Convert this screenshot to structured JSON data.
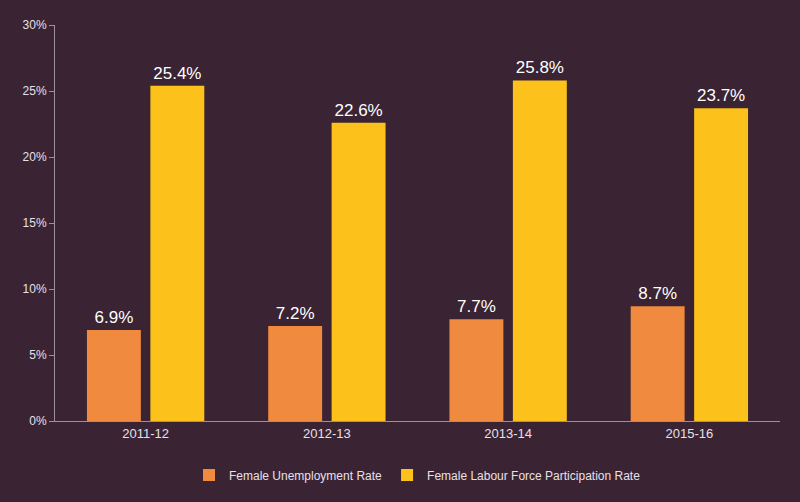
{
  "chart_data": {
    "type": "bar",
    "categories": [
      "2011-12",
      "2012-13",
      "2013-14",
      "2015-16"
    ],
    "series": [
      {
        "name": "Female Unemployment Rate",
        "color": "#f08a3e",
        "values": [
          6.9,
          7.2,
          7.7,
          8.7
        ],
        "value_labels": [
          "6.9%",
          "7.2%",
          "7.7%",
          "8.7%"
        ]
      },
      {
        "name": "Female Labour Force Participation Rate",
        "color": "#fcc21b",
        "values": [
          25.4,
          22.6,
          25.8,
          23.7
        ],
        "value_labels": [
          "25.4%",
          "22.6%",
          "25.8%",
          "23.7%"
        ]
      }
    ],
    "ylim": [
      0,
      30
    ],
    "yticks": [
      {
        "value": 0,
        "label": "0%"
      },
      {
        "value": 5,
        "label": "5%"
      },
      {
        "value": 10,
        "label": "10%"
      },
      {
        "value": 15,
        "label": "15%"
      },
      {
        "value": 20,
        "label": "20%"
      },
      {
        "value": 25,
        "label": "25%"
      },
      {
        "value": 30,
        "label": "30%"
      }
    ],
    "grid": false,
    "legend": "bottom",
    "data_labels": true
  }
}
